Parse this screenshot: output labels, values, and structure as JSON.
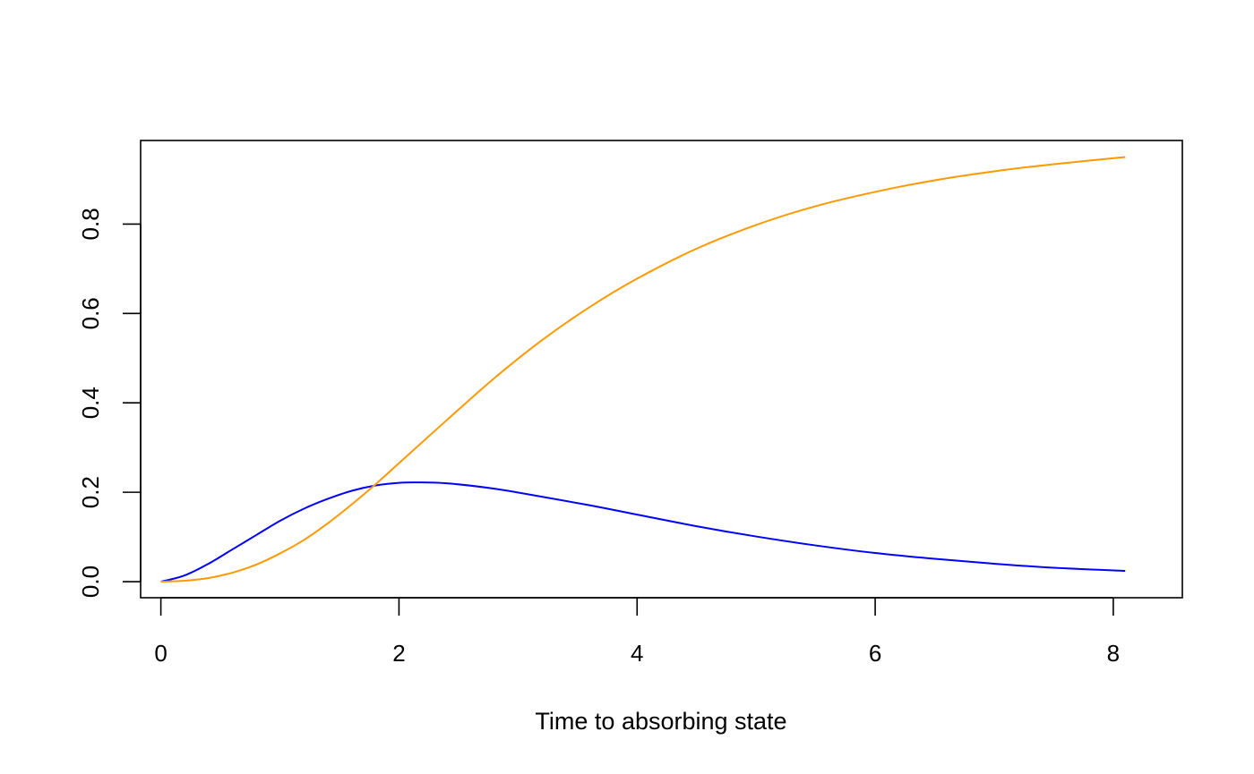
{
  "chart_data": {
    "type": "line",
    "title": "",
    "xlabel": "Time to absorbing state",
    "ylabel": "",
    "xlim": [
      -0.17,
      8.58
    ],
    "ylim": [
      -0.036,
      0.987
    ],
    "x_ticks": [
      0,
      2,
      4,
      6,
      8
    ],
    "x_tick_labels": [
      "0",
      "2",
      "4",
      "6",
      "8"
    ],
    "y_ticks": [
      0.0,
      0.2,
      0.4,
      0.6,
      0.8
    ],
    "y_tick_labels": [
      "0.0",
      "0.2",
      "0.4",
      "0.6",
      "0.8"
    ],
    "grid": false,
    "legend": "none",
    "series": [
      {
        "color": "#0000ff",
        "x": [
          0,
          0.2,
          0.4,
          0.6,
          0.8,
          1.0,
          1.2,
          1.4,
          1.6,
          1.8,
          2.0,
          2.14,
          2.4,
          2.8,
          3.2,
          3.6,
          4.0,
          4.5,
          5.0,
          5.5,
          6.0,
          6.5,
          7.0,
          7.5,
          8.1
        ],
        "y": [
          0.0,
          0.014,
          0.04,
          0.072,
          0.104,
          0.136,
          0.163,
          0.185,
          0.203,
          0.215,
          0.221,
          0.222,
          0.22,
          0.208,
          0.19,
          0.171,
          0.15,
          0.124,
          0.101,
          0.081,
          0.064,
          0.051,
          0.04,
          0.031,
          0.024
        ]
      },
      {
        "color": "#ff9900",
        "x": [
          0,
          0.2,
          0.4,
          0.6,
          0.8,
          1.0,
          1.2,
          1.4,
          1.6,
          1.8,
          2.0,
          2.4,
          2.8,
          3.2,
          3.6,
          4.0,
          4.5,
          5.0,
          5.5,
          6.0,
          6.5,
          7.0,
          7.5,
          8.1
        ],
        "y": [
          0.0,
          0.002,
          0.008,
          0.02,
          0.038,
          0.063,
          0.093,
          0.13,
          0.172,
          0.217,
          0.265,
          0.361,
          0.455,
          0.54,
          0.614,
          0.678,
          0.745,
          0.798,
          0.84,
          0.872,
          0.898,
          0.918,
          0.934,
          0.95
        ]
      }
    ]
  }
}
